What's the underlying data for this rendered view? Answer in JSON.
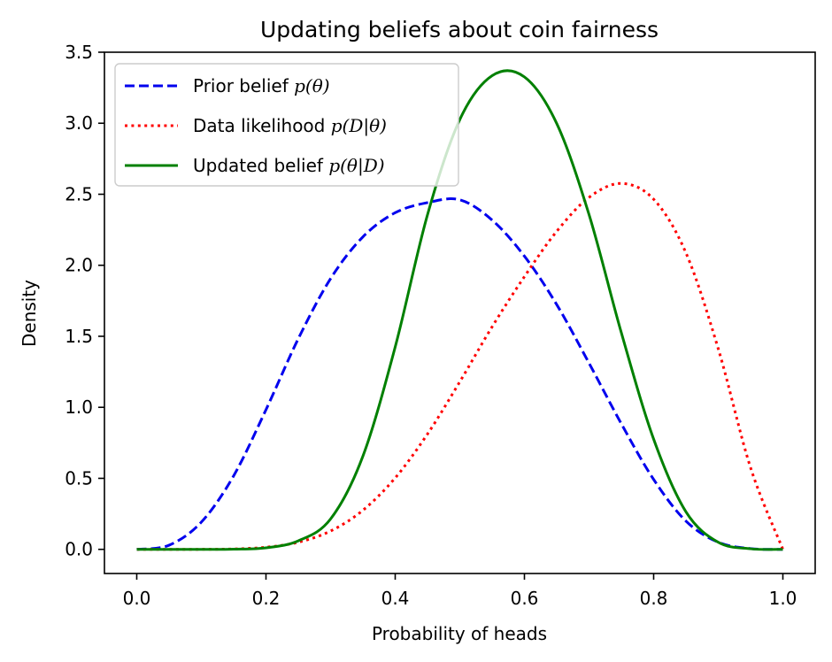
{
  "chart_data": {
    "type": "line",
    "title": "Updating beliefs about coin fairness",
    "xlabel": "Probability of heads",
    "ylabel": "Density",
    "xlim": [
      -0.05,
      1.05
    ],
    "ylim": [
      -0.17,
      3.5
    ],
    "xticks": [
      0.0,
      0.2,
      0.4,
      0.6,
      0.8,
      1.0
    ],
    "xtick_labels": [
      "0.0",
      "0.2",
      "0.4",
      "0.6",
      "0.8",
      "1.0"
    ],
    "yticks": [
      0.0,
      0.5,
      1.0,
      1.5,
      2.0,
      2.5,
      3.0,
      3.5
    ],
    "ytick_labels": [
      "0.0",
      "0.5",
      "1.0",
      "1.5",
      "2.0",
      "2.5",
      "3.0",
      "3.5"
    ],
    "grid": false,
    "legend_position": "top-left",
    "x": [
      0.0,
      0.05,
      0.1,
      0.15,
      0.2,
      0.25,
      0.3,
      0.35,
      0.4,
      0.45,
      0.5,
      0.55,
      0.6,
      0.65,
      0.7,
      0.75,
      0.8,
      0.85,
      0.9,
      0.95,
      1.0
    ],
    "series": [
      {
        "name": "Prior belief",
        "legend_text": "Prior belief ",
        "legend_math": "p(θ)",
        "style": "dashed",
        "color": "#0000ee",
        "values": [
          0.0,
          0.029,
          0.192,
          0.518,
          0.983,
          1.483,
          1.906,
          2.2,
          2.37,
          2.441,
          2.461,
          2.318,
          2.064,
          1.723,
          1.311,
          0.884,
          0.492,
          0.199,
          0.05,
          0.005,
          0.0
        ]
      },
      {
        "name": "Data likelihood",
        "legend_text": "Data likelihood ",
        "legend_math": "p(D|θ)",
        "style": "dotted",
        "color": "#ff0000",
        "values": [
          0.0,
          0.0,
          0.0003,
          0.003,
          0.015,
          0.05,
          0.129,
          0.275,
          0.503,
          0.812,
          1.18,
          1.567,
          1.92,
          2.239,
          2.478,
          2.576,
          2.465,
          2.087,
          1.412,
          0.575,
          0.0
        ]
      },
      {
        "name": "Updated belief",
        "legend_text": "Updated belief ",
        "legend_math": "p(θ|D)",
        "style": "solid",
        "color": "#008000",
        "values": [
          0.0,
          0.0,
          0.0,
          0.001,
          0.011,
          0.06,
          0.214,
          0.656,
          1.425,
          2.356,
          3.026,
          3.335,
          3.326,
          2.998,
          2.357,
          1.525,
          0.776,
          0.264,
          0.05,
          0.004,
          0.0
        ]
      }
    ]
  }
}
